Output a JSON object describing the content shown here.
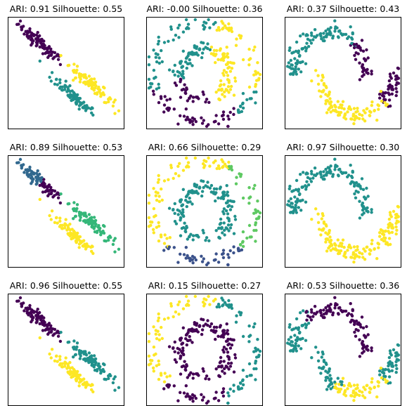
{
  "chart_data": [
    {
      "type": "scatter",
      "title": "ARI: 0.91 Silhouette: 0.55",
      "dataset": "blobs",
      "series": [
        {
          "color": "#440154"
        },
        {
          "color": "#21918c"
        },
        {
          "color": "#fde725"
        }
      ]
    },
    {
      "type": "scatter",
      "title": "ARI: -0.00 Silhouette: 0.36",
      "dataset": "circles",
      "series": [
        {
          "color": "#440154"
        },
        {
          "color": "#21918c"
        },
        {
          "color": "#fde725"
        }
      ]
    },
    {
      "type": "scatter",
      "title": "ARI: 0.37 Silhouette: 0.43",
      "dataset": "moons",
      "series": [
        {
          "color": "#440154"
        },
        {
          "color": "#21918c"
        },
        {
          "color": "#fde725"
        }
      ]
    },
    {
      "type": "scatter",
      "title": "ARI: 0.89 Silhouette: 0.53",
      "dataset": "blobs",
      "series": [
        {
          "color": "#440154"
        },
        {
          "color": "#31688e"
        },
        {
          "color": "#35b779"
        },
        {
          "color": "#fde725"
        }
      ]
    },
    {
      "type": "scatter",
      "title": "ARI: 0.66 Silhouette: 0.29",
      "dataset": "circles",
      "series": [
        {
          "color": "#3b528b"
        },
        {
          "color": "#21918c"
        },
        {
          "color": "#5ec962"
        },
        {
          "color": "#fde725"
        }
      ]
    },
    {
      "type": "scatter",
      "title": "ARI: 0.97 Silhouette: 0.30",
      "dataset": "moons",
      "series": [
        {
          "color": "#21918c"
        },
        {
          "color": "#fde725"
        }
      ]
    },
    {
      "type": "scatter",
      "title": "ARI: 0.96 Silhouette: 0.55",
      "dataset": "blobs",
      "series": [
        {
          "color": "#440154"
        },
        {
          "color": "#21918c"
        },
        {
          "color": "#fde725"
        }
      ]
    },
    {
      "type": "scatter",
      "title": "ARI: 0.15 Silhouette: 0.27",
      "dataset": "circles",
      "series": [
        {
          "color": "#440154"
        },
        {
          "color": "#21918c"
        },
        {
          "color": "#fde725"
        }
      ]
    },
    {
      "type": "scatter",
      "title": "ARI: 0.53 Silhouette: 0.36",
      "dataset": "moons",
      "series": [
        {
          "color": "#440154"
        },
        {
          "color": "#21918c"
        },
        {
          "color": "#fde725"
        }
      ]
    }
  ]
}
